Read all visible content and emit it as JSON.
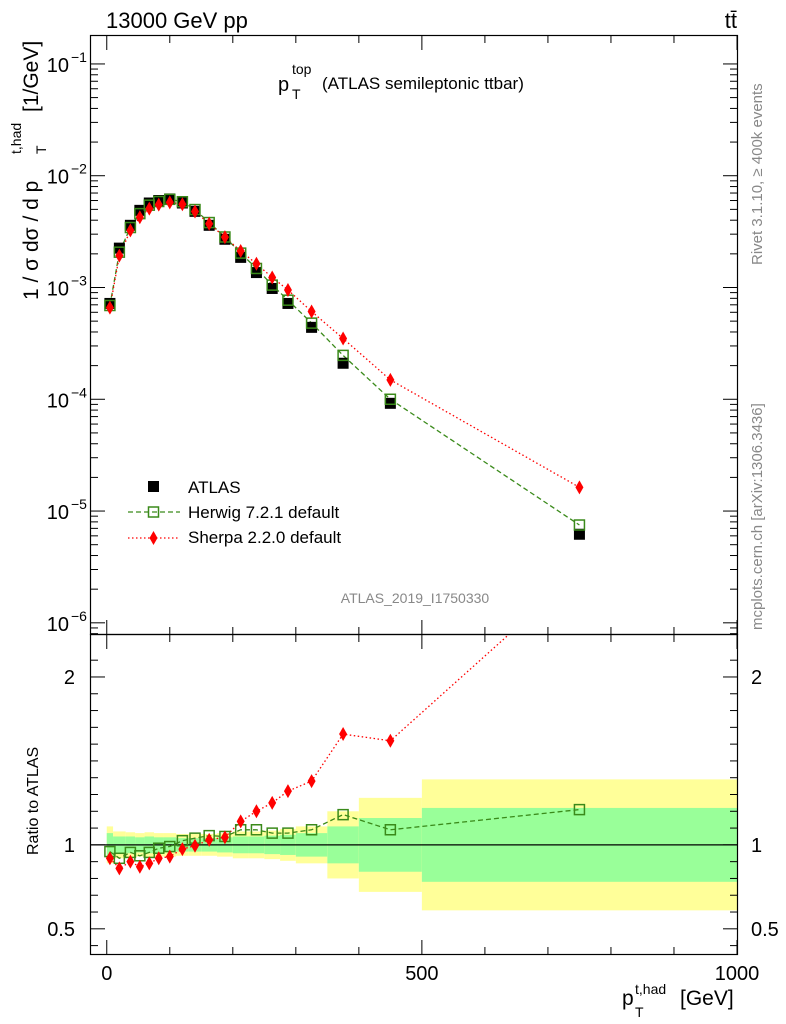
{
  "header": {
    "energy_label": "13000 GeV pp",
    "process_label": "tt̄"
  },
  "plot": {
    "title_main": "p",
    "title_sup": "top",
    "title_sub": "T",
    "title_rest": "(ATLAS semileptonic ttbar)",
    "ylabel_prefix": "1 / σ dσ / d p",
    "ylabel_sup": "t,had",
    "ylabel_sub": "T",
    "ylabel_suffix": "[1/GeV]",
    "ratio_ylabel": "Ratio to ATLAS",
    "xlabel_main": "p",
    "xlabel_sup": "t,had",
    "xlabel_sub": "T",
    "xlabel_suffix": "[GeV]",
    "analysis_id": "ATLAS_2019_I1750330",
    "side_text_top": "Rivet 3.1.10, ≥ 400k events",
    "side_text_bottom": "mcplots.cern.ch [arXiv:1306.3436]"
  },
  "legend": [
    {
      "label": "ATLAS",
      "key": "atlas"
    },
    {
      "label": "Herwig 7.2.1 default",
      "key": "herwig"
    },
    {
      "label": "Sherpa 2.2.0 default",
      "key": "sherpa"
    }
  ],
  "colors": {
    "atlas": "#000000",
    "herwig": "#3a8a1a",
    "sherpa": "#ff0000",
    "band_inner": "#99ff99",
    "band_outer": "#ffff99"
  },
  "chart_data": {
    "type": "scatter",
    "x_range": [
      -25,
      1000
    ],
    "y_log_range": [
      -6.1,
      -0.75
    ],
    "ratio_range": [
      0.35,
      2.25
    ],
    "x_ticks": [
      0,
      500,
      1000
    ],
    "y_ticks": [
      {
        "exp": -1,
        "label": "10",
        "sup": "−1"
      },
      {
        "exp": -2,
        "label": "10",
        "sup": "−2"
      },
      {
        "exp": -3,
        "label": "10",
        "sup": "−3"
      },
      {
        "exp": -4,
        "label": "10",
        "sup": "−4"
      },
      {
        "exp": -5,
        "label": "10",
        "sup": "−5"
      },
      {
        "exp": -6,
        "label": "10",
        "sup": "−6"
      }
    ],
    "ratio_ticks": [
      0.5,
      1,
      2
    ],
    "x": [
      5,
      20,
      37.5,
      52.5,
      67.5,
      82.5,
      100,
      120,
      140,
      162.5,
      187.5,
      212.5,
      237.5,
      262.5,
      287.5,
      325,
      375,
      450,
      750
    ],
    "bins": [
      [
        0,
        10
      ],
      [
        10,
        30
      ],
      [
        30,
        45
      ],
      [
        45,
        60
      ],
      [
        60,
        75
      ],
      [
        75,
        90
      ],
      [
        90,
        110
      ],
      [
        110,
        130
      ],
      [
        130,
        150
      ],
      [
        150,
        175
      ],
      [
        175,
        200
      ],
      [
        200,
        225
      ],
      [
        225,
        250
      ],
      [
        250,
        275
      ],
      [
        275,
        300
      ],
      [
        300,
        350
      ],
      [
        350,
        400
      ],
      [
        400,
        500
      ],
      [
        500,
        1000
      ]
    ],
    "series": [
      {
        "name": "ATLAS",
        "key": "atlas",
        "values": [
          0.00072,
          0.00225,
          0.0036,
          0.0049,
          0.0057,
          0.006,
          0.0062,
          0.0057,
          0.0048,
          0.0036,
          0.0027,
          0.00186,
          0.00136,
          0.00098,
          0.00072,
          0.00044,
          0.00021,
          9.2e-05,
          6.2e-06
        ]
      },
      {
        "name": "Herwig 7.2.1 default",
        "key": "herwig",
        "values": [
          0.00069,
          0.00207,
          0.00344,
          0.00458,
          0.00545,
          0.00588,
          0.00615,
          0.00585,
          0.00498,
          0.00381,
          0.00283,
          0.00203,
          0.00148,
          0.00105,
          0.00077,
          0.00048,
          0.000247,
          0.0001,
          7.5e-06
        ]
      },
      {
        "name": "Sherpa 2.2.0 default",
        "key": "sherpa",
        "values": [
          0.00066,
          0.00193,
          0.00324,
          0.00425,
          0.00508,
          0.00552,
          0.00577,
          0.00556,
          0.00478,
          0.00372,
          0.00282,
          0.00212,
          0.00163,
          0.00123,
          0.00095,
          0.00061,
          0.00035,
          0.000149,
          1.63e-05
        ]
      }
    ],
    "ratio_series": [
      {
        "name": "Herwig 7.2.1 default",
        "key": "herwig",
        "values": [
          0.96,
          0.92,
          0.955,
          0.935,
          0.955,
          0.98,
          0.99,
          1.025,
          1.04,
          1.055,
          1.05,
          1.09,
          1.09,
          1.07,
          1.07,
          1.09,
          1.18,
          1.09,
          1.21
        ]
      },
      {
        "name": "Sherpa 2.2.0 default",
        "key": "sherpa",
        "values": [
          0.92,
          0.86,
          0.9,
          0.87,
          0.89,
          0.92,
          0.93,
          0.975,
          0.995,
          1.03,
          1.045,
          1.14,
          1.2,
          1.25,
          1.32,
          1.38,
          1.66,
          1.62,
          2.63
        ]
      }
    ],
    "band_inner": [
      0.07,
      0.05,
      0.05,
      0.045,
      0.05,
      0.045,
      0.045,
      0.04,
      0.04,
      0.04,
      0.045,
      0.05,
      0.05,
      0.055,
      0.06,
      0.07,
      0.11,
      0.16,
      0.22
    ],
    "band_outer": [
      0.11,
      0.08,
      0.075,
      0.07,
      0.075,
      0.07,
      0.07,
      0.065,
      0.065,
      0.065,
      0.07,
      0.08,
      0.08,
      0.085,
      0.095,
      0.11,
      0.2,
      0.28,
      0.39
    ]
  }
}
